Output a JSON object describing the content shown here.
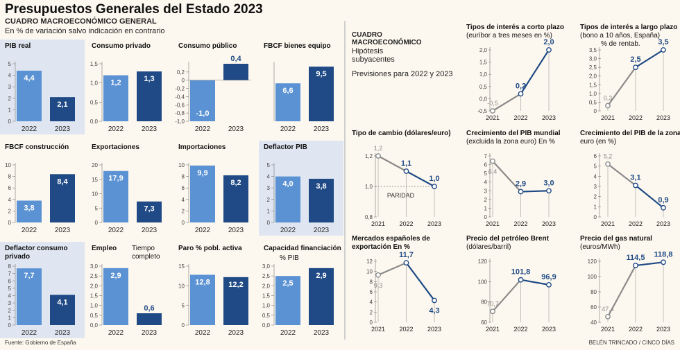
{
  "header": {
    "title": "Presupuestos Generales del Estado 2023",
    "subtitle": "CUADRO MACROECONÓMICO GENERAL",
    "note": "En % de variación salvo indicación en contrario"
  },
  "footer": {
    "source": "Fuente: Gobierno de España",
    "credit": "BELÉN TRINCADO / CINCO DÍAS"
  },
  "right_header": {
    "line1": "CUADRO",
    "line2": "MACROECONÓMICO",
    "hyp1": "Hipótesis",
    "hyp2": "subyacentes",
    "prev": "Previsiones para 2022 y 2023"
  },
  "colors": {
    "light_bar": "#5b92d3",
    "dark_bar": "#1f4a85",
    "grey_line": "#8a8a8a",
    "highlight": "#dfe6f1",
    "background": "#fdf8ef"
  },
  "chart_data": [
    {
      "id": "b1",
      "type": "bar",
      "title": [
        "PIB real"
      ],
      "categories": [
        "2022",
        "2023"
      ],
      "values": [
        4.4,
        2.1
      ],
      "labels": [
        "4,4",
        "2,1"
      ],
      "ylim": [
        0,
        5
      ],
      "yticks": [
        0,
        1,
        2,
        3,
        4,
        5
      ],
      "ytick_labels": [
        "0",
        "1",
        "2",
        "3",
        "4",
        "5"
      ]
    },
    {
      "id": "b2",
      "type": "bar",
      "title": [
        "Consumo privado"
      ],
      "categories": [
        "2022",
        "2023"
      ],
      "values": [
        1.2,
        1.3
      ],
      "labels": [
        "1,2",
        "1,3"
      ],
      "ylim": [
        0,
        1.5
      ],
      "yticks": [
        0,
        0.5,
        1,
        1.5
      ],
      "ytick_labels": [
        "0,0",
        "0,5",
        "1,0",
        "1,5"
      ]
    },
    {
      "id": "b3",
      "type": "bar",
      "title": [
        "Consumo público"
      ],
      "categories": [
        "2022",
        "2023"
      ],
      "values": [
        -1.0,
        0.4
      ],
      "labels": [
        "-1,0",
        "0,4"
      ],
      "ylim": [
        -1,
        0.4
      ],
      "yticks": [
        -1,
        -0.8,
        -0.6,
        -0.4,
        -0.2,
        0,
        0.2
      ],
      "ytick_labels": [
        "-1,0",
        "-0,8",
        "-0,6",
        "-0,4",
        "-0,2",
        "0",
        "0,2"
      ]
    },
    {
      "id": "b4",
      "type": "bar",
      "title": [
        "FBCF bienes equipo"
      ],
      "categories": [
        "2022",
        "2023"
      ],
      "values": [
        6.6,
        9.5
      ],
      "labels": [
        "6,6",
        "9,5"
      ],
      "ylim": [
        0,
        10
      ],
      "yticks": [],
      "ytick_labels": []
    },
    {
      "id": "b5",
      "type": "bar",
      "title": [
        "FBCF construcción"
      ],
      "categories": [
        "2022",
        "2023"
      ],
      "values": [
        3.8,
        8.4
      ],
      "labels": [
        "3,8",
        "8,4"
      ],
      "ylim": [
        0,
        10
      ],
      "yticks": [
        0,
        2,
        4,
        6,
        8,
        10
      ],
      "ytick_labels": [
        "0",
        "2",
        "4",
        "6",
        "8",
        "10"
      ]
    },
    {
      "id": "b6",
      "type": "bar",
      "title": [
        "Exportaciones"
      ],
      "categories": [
        "2022",
        "2023"
      ],
      "values": [
        17.9,
        7.3
      ],
      "labels": [
        "17,9",
        "7,3"
      ],
      "ylim": [
        0,
        20
      ],
      "yticks": [
        0,
        5,
        10,
        15,
        20
      ],
      "ytick_labels": [
        "0",
        "5",
        "10",
        "15",
        "20"
      ]
    },
    {
      "id": "b7",
      "type": "bar",
      "title": [
        "Importaciones"
      ],
      "categories": [
        "2022",
        "2023"
      ],
      "values": [
        9.9,
        8.2
      ],
      "labels": [
        "9,9",
        "8,2"
      ],
      "ylim": [
        0,
        10
      ],
      "yticks": [
        0,
        2,
        4,
        6,
        8,
        10
      ],
      "ytick_labels": [
        "0",
        "2",
        "4",
        "6",
        "8",
        "10"
      ]
    },
    {
      "id": "b8",
      "type": "bar",
      "title": [
        "Deflactor PIB"
      ],
      "categories": [
        "2022",
        "2023"
      ],
      "values": [
        4.0,
        3.8
      ],
      "labels": [
        "4,0",
        "3,8"
      ],
      "ylim": [
        0,
        5
      ],
      "yticks": [
        0,
        1,
        2,
        3,
        4,
        5
      ],
      "ytick_labels": [
        "0",
        "1",
        "2",
        "3",
        "4",
        "5"
      ]
    },
    {
      "id": "b9",
      "type": "bar",
      "title": [
        "Deflactor consumo",
        "privado"
      ],
      "categories": [
        "2022",
        "2023"
      ],
      "values": [
        7.7,
        4.1
      ],
      "labels": [
        "7,7",
        "4,1"
      ],
      "ylim": [
        0,
        8
      ],
      "yticks": [
        0,
        1,
        2,
        3,
        4,
        5,
        6,
        7,
        8
      ],
      "ytick_labels": [
        "0",
        "1",
        "2",
        "3",
        "4",
        "5",
        "6",
        "7",
        "8"
      ]
    },
    {
      "id": "b10",
      "type": "bar",
      "title": [
        "Empleo"
      ],
      "note": [
        "Tiempo",
        "completo"
      ],
      "categories": [
        "2022",
        "2023"
      ],
      "values": [
        2.9,
        0.6
      ],
      "labels": [
        "2,9",
        "0,6"
      ],
      "ylim": [
        0,
        3
      ],
      "yticks": [
        0,
        0.5,
        1,
        1.5,
        2,
        2.5,
        3
      ],
      "ytick_labels": [
        "0,0",
        "0,5",
        "1,0",
        "1,5",
        "2,0",
        "2,5",
        "3,0"
      ]
    },
    {
      "id": "b11",
      "type": "bar",
      "title": [
        "Paro % pobl. activa"
      ],
      "categories": [
        "2022",
        "2023"
      ],
      "values": [
        12.8,
        12.2
      ],
      "labels": [
        "12,8",
        "12,2"
      ],
      "ylim": [
        0,
        15
      ],
      "yticks": [
        0,
        5,
        10,
        15
      ],
      "ytick_labels": [
        "0",
        "5",
        "10",
        "15"
      ]
    },
    {
      "id": "b12",
      "type": "bar",
      "title": [
        "Capacidad financiación"
      ],
      "note": [
        "% PIB"
      ],
      "categories": [
        "2022",
        "2023"
      ],
      "values": [
        2.5,
        2.9
      ],
      "labels": [
        "2,5",
        "2,9"
      ],
      "ylim": [
        0,
        3
      ],
      "yticks": [
        0,
        0.5,
        1,
        1.5,
        2,
        2.5,
        3
      ],
      "ytick_labels": [
        "0,0",
        "0,5",
        "1,0",
        "1,5",
        "2,0",
        "2,5",
        "3,0"
      ]
    },
    {
      "id": "l1",
      "type": "line",
      "title": [
        "Tipos de interés a corto plazo"
      ],
      "sub": [
        "(euríbor a tres meses en %)"
      ],
      "x": [
        "2021",
        "2022",
        "2023"
      ],
      "values": [
        -0.5,
        0.2,
        2.0
      ],
      "labels": [
        "-0,5",
        "0,2",
        "2,0"
      ],
      "ylim": [
        -0.5,
        2
      ],
      "yticks": [
        -0.5,
        0,
        0.5,
        1,
        1.5,
        2
      ],
      "ytick_labels": [
        "-0,5",
        "0,0",
        "0,5",
        "1,0",
        "1,5",
        "2,0"
      ]
    },
    {
      "id": "l2",
      "type": "line",
      "title": [
        "Tipos de interés a largo plazo"
      ],
      "sub": [
        "(bono a 10 años, España)",
        "% de rentab."
      ],
      "x": [
        "2021",
        "2022",
        "2023"
      ],
      "values": [
        0.3,
        2.5,
        3.5
      ],
      "labels": [
        "0,3",
        "2,5",
        "3,5"
      ],
      "ylim": [
        0,
        3.5
      ],
      "yticks": [
        0,
        0.5,
        1,
        1.5,
        2,
        2.5,
        3,
        3.5
      ],
      "ytick_labels": [
        "0",
        "0,5",
        "1,0",
        "1,5",
        "2,0",
        "2,5",
        "3,0",
        "3,5"
      ]
    },
    {
      "id": "l3",
      "type": "line",
      "title": [
        "Tipo de cambio (dólares/euro)"
      ],
      "sub": [],
      "x": [
        "2021",
        "2022",
        "2023"
      ],
      "values": [
        1.2,
        1.1,
        1.0
      ],
      "labels": [
        "1,2",
        "1,1",
        "1,0"
      ],
      "ylim": [
        0.8,
        1.2
      ],
      "yticks": [
        0.8,
        1.0,
        1.2
      ],
      "ytick_labels": [
        "0,8",
        "1,0",
        "1,2"
      ],
      "reference": {
        "value": 1.0,
        "label": "PARIDAD"
      }
    },
    {
      "id": "l4",
      "type": "line",
      "title": [
        "Crecimiento del PIB mundial"
      ],
      "sub": [
        "(excluida la zona euro) En %"
      ],
      "x": [
        "2021",
        "2022",
        "2023"
      ],
      "values": [
        6.4,
        2.9,
        3.0
      ],
      "labels": [
        "6,4",
        "2,9",
        "3,0"
      ],
      "ylim": [
        0,
        7
      ],
      "yticks": [
        0,
        1,
        2,
        3,
        4,
        5,
        6,
        7
      ],
      "ytick_labels": [
        "0",
        "1",
        "2",
        "3",
        "4",
        "5",
        "6",
        "7"
      ]
    },
    {
      "id": "l5",
      "type": "line",
      "title": [
        "Crecimiento del PIB de la zona"
      ],
      "sub": [
        "euro (en %)"
      ],
      "x": [
        "2021",
        "2022",
        "2023"
      ],
      "values": [
        5.2,
        3.1,
        0.9
      ],
      "labels": [
        "5,2",
        "3,1",
        "0,9"
      ],
      "ylim": [
        0,
        6
      ],
      "yticks": [
        0,
        1,
        2,
        3,
        4,
        5,
        6
      ],
      "ytick_labels": [
        "0",
        "1",
        "2",
        "3",
        "4",
        "5",
        "6"
      ]
    },
    {
      "id": "l6",
      "type": "line",
      "title": [
        "Mercados españoles de",
        "exportación En %"
      ],
      "sub": [],
      "x": [
        "2021",
        "2022",
        "2023"
      ],
      "values": [
        9.3,
        11.7,
        4.3
      ],
      "labels": [
        "9,3",
        "11,7",
        "4,3"
      ],
      "ylim": [
        0,
        12
      ],
      "yticks": [
        0,
        2,
        4,
        6,
        8,
        10,
        12
      ],
      "ytick_labels": [
        "0",
        "2",
        "4",
        "6",
        "8",
        "10",
        "12"
      ]
    },
    {
      "id": "l7",
      "type": "line",
      "title": [
        "Precio del petróleo Brent"
      ],
      "sub": [
        "(dólares/barril)"
      ],
      "x": [
        "2021",
        "2022",
        "2023"
      ],
      "values": [
        70.7,
        101.8,
        96.9
      ],
      "labels": [
        "70,7",
        "101,8",
        "96,9"
      ],
      "ylim": [
        60,
        120
      ],
      "yticks": [
        60,
        80,
        100,
        120
      ],
      "ytick_labels": [
        "60",
        "80",
        "100",
        "120"
      ]
    },
    {
      "id": "l8",
      "type": "line",
      "title": [
        "Precio del gas natural"
      ],
      "sub": [
        "(euros/MWh)"
      ],
      "x": [
        "2021",
        "2022",
        "2023"
      ],
      "values": [
        47.4,
        114.5,
        118.8
      ],
      "labels": [
        "47,4",
        "114,5",
        "118,8"
      ],
      "ylim": [
        40,
        120
      ],
      "yticks": [
        40,
        60,
        80,
        100,
        120
      ],
      "ytick_labels": [
        "40",
        "60",
        "80",
        "100",
        "120"
      ]
    }
  ]
}
